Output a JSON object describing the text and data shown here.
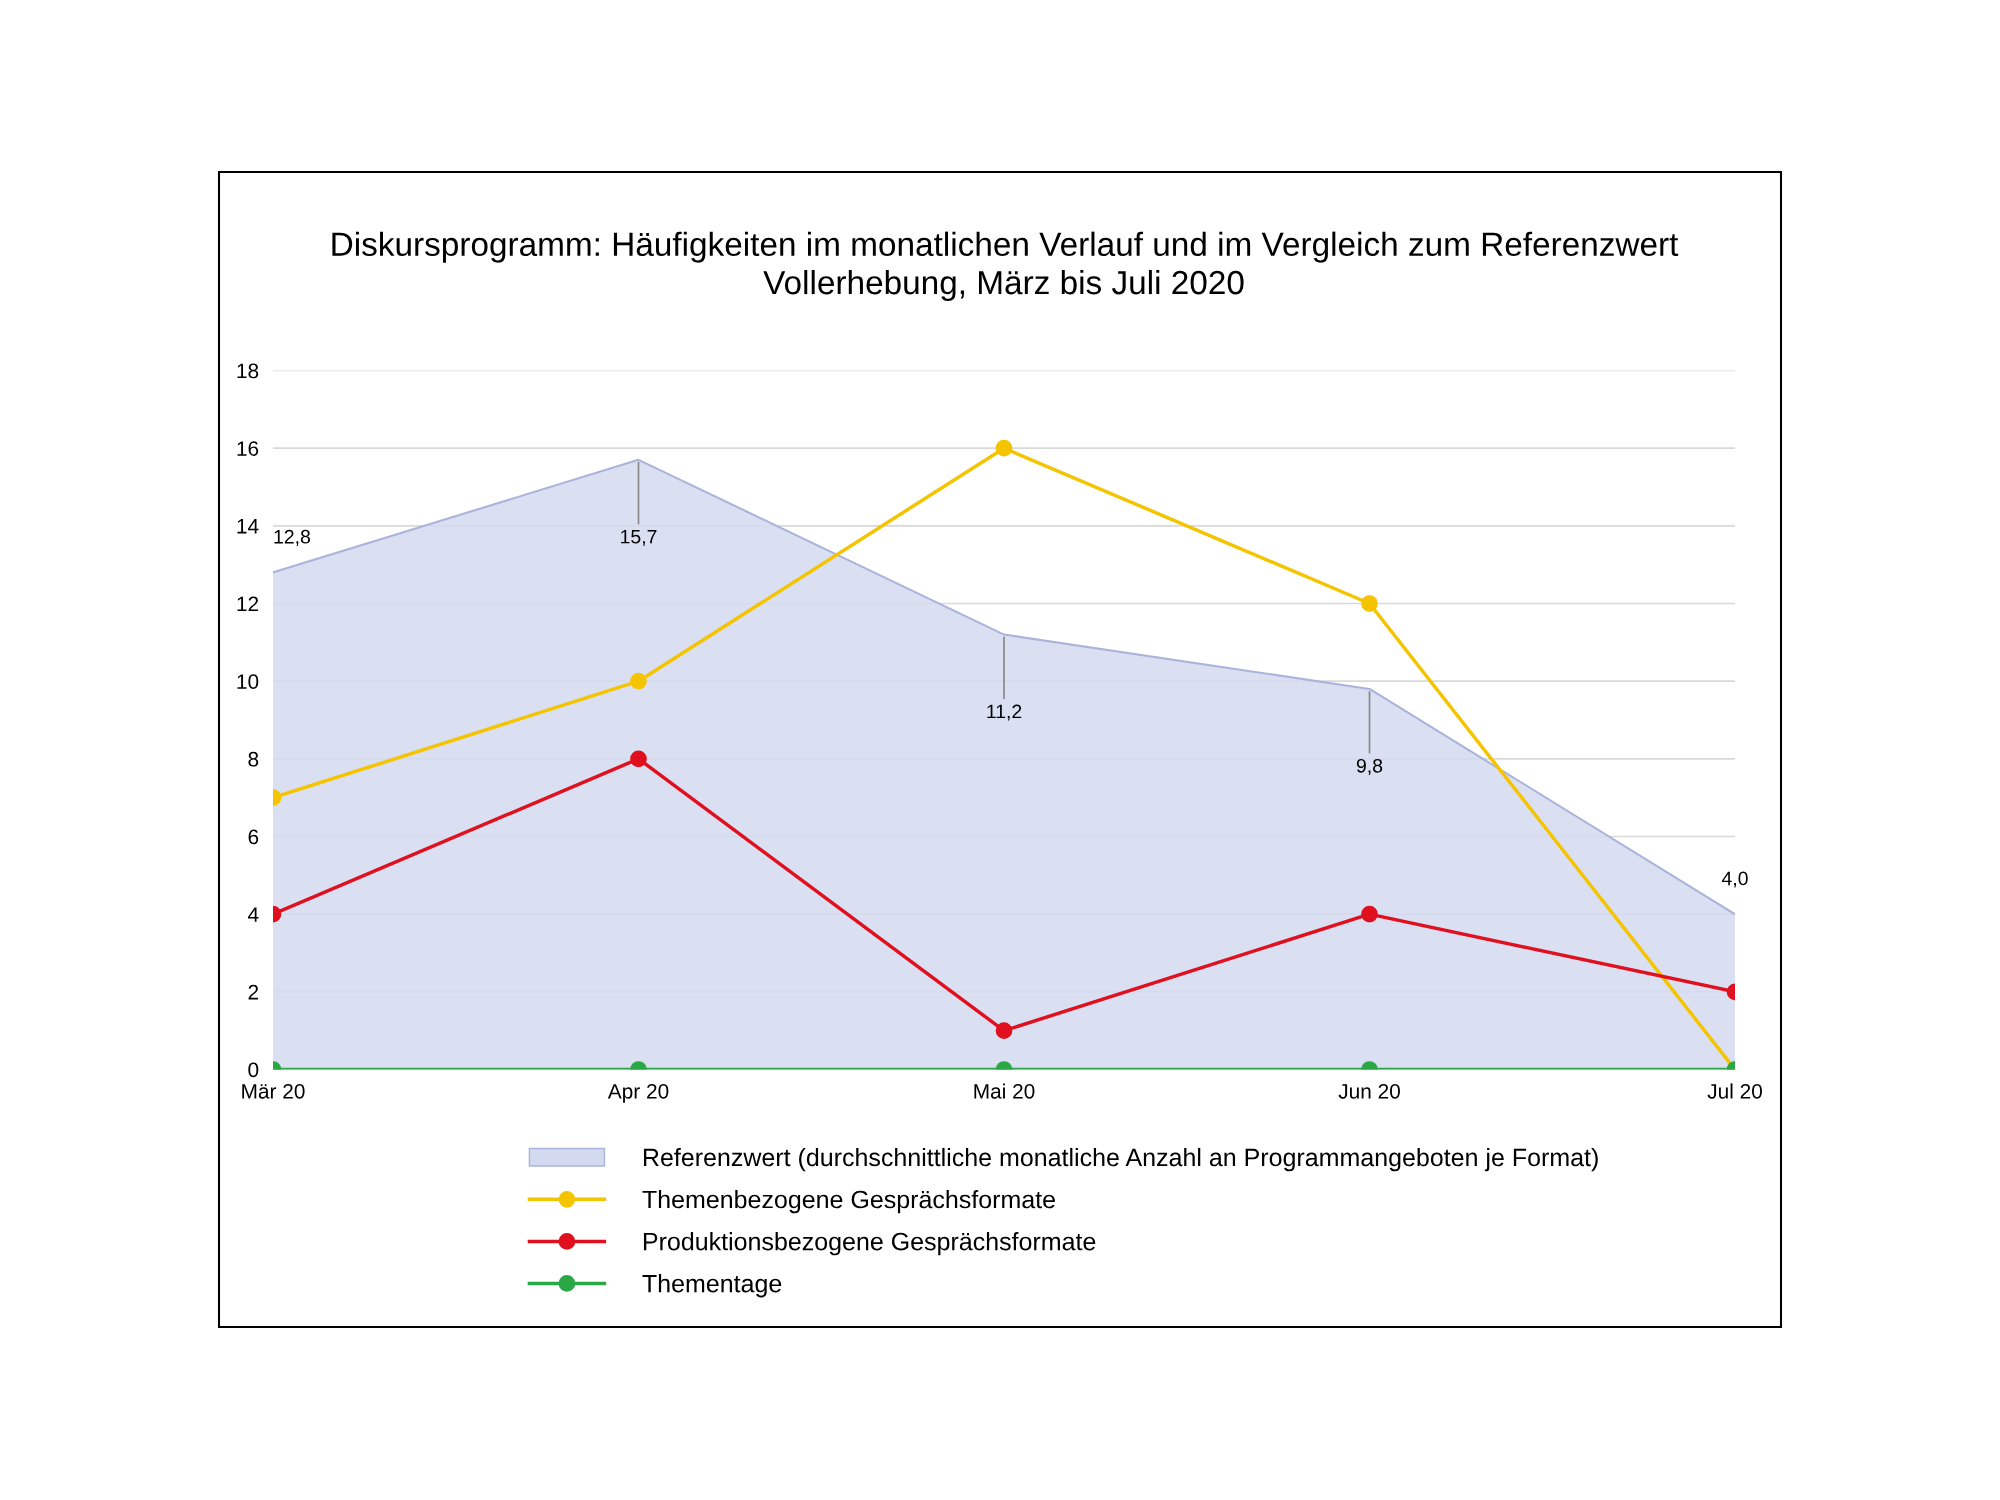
{
  "chart_data": {
    "type": "line",
    "title": "Diskursprogramm: Häufigkeiten im monatlichen Verlauf und im Vergleich zum Referenzwert\nVollerhebung, März bis Juli 2020",
    "categories": [
      "Mär 20",
      "Apr 20",
      "Mai 20",
      "Jun 20",
      "Jul 20"
    ],
    "series": [
      {
        "name": "Referenzwert (durchschnittliche monatliche Anzahl an Programmangeboten je Format)",
        "type": "area",
        "marker": "none",
        "color": "#d3daf0",
        "values": [
          12.8,
          15.7,
          11.2,
          9.8,
          4.0
        ],
        "value_labels": [
          "12,8",
          "15,7",
          "11,2",
          "9,8",
          "4,0"
        ]
      },
      {
        "name": "Themenbezogene Gesprächsformate",
        "color": "#f5c400",
        "values": [
          7,
          10,
          16,
          12,
          0
        ]
      },
      {
        "name": "Produktionsbezogene Gesprächsformate",
        "color": "#e0101f",
        "values": [
          4,
          8,
          1,
          4,
          2
        ]
      },
      {
        "name": "Thementage",
        "color": "#2aa845",
        "values": [
          0,
          0,
          0,
          0,
          0
        ]
      }
    ],
    "ylim": [
      0,
      18
    ],
    "yticks": [
      0,
      2,
      4,
      6,
      8,
      10,
      12,
      14,
      16,
      18
    ],
    "grid": "y",
    "legend": "bottom",
    "marker": "circle",
    "line_style": "solid"
  }
}
